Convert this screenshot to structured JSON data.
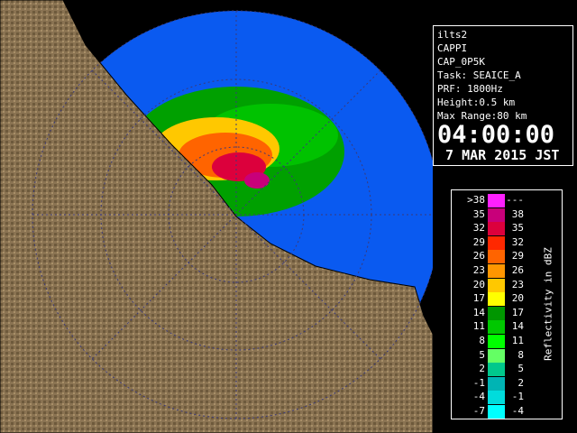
{
  "info": {
    "lines": [
      "ilts2",
      "CAPPI",
      "CAP_0P5K",
      "Task: SEAICE_A",
      "PRF: 1800Hz",
      "Height:0.5 km",
      "Max Range:80 km"
    ],
    "time": "04:00:00",
    "date": " 7 MAR 2015 JST"
  },
  "legend": {
    "title": "Reflectivity in dBZ",
    "rows": [
      {
        "low": ">38",
        "high": "---",
        "color": "#ff20ff"
      },
      {
        "low": "35",
        "high": "38",
        "color": "#c8007a"
      },
      {
        "low": "32",
        "high": "35",
        "color": "#dc003c"
      },
      {
        "low": "29",
        "high": "32",
        "color": "#ff2800"
      },
      {
        "low": "26",
        "high": "29",
        "color": "#ff6400"
      },
      {
        "low": "23",
        "high": "26",
        "color": "#ff9600"
      },
      {
        "low": "20",
        "high": "23",
        "color": "#ffc800"
      },
      {
        "low": "17",
        "high": "20",
        "color": "#ffff00"
      },
      {
        "low": "14",
        "high": "17",
        "color": "#009600"
      },
      {
        "low": "11",
        "high": "14",
        "color": "#00c800"
      },
      {
        "low": "8",
        "high": "11",
        "color": "#00ff00"
      },
      {
        "low": "5",
        "high": "8",
        "color": "#64ff64"
      },
      {
        "low": "2",
        "high": "5",
        "color": "#00c88c"
      },
      {
        "low": "-1",
        "high": "2",
        "color": "#00b4b4"
      },
      {
        "low": "-4",
        "high": "-1",
        "color": "#00dcdc"
      },
      {
        "low": "-7",
        "high": "-4",
        "color": "#00ffff"
      }
    ]
  }
}
